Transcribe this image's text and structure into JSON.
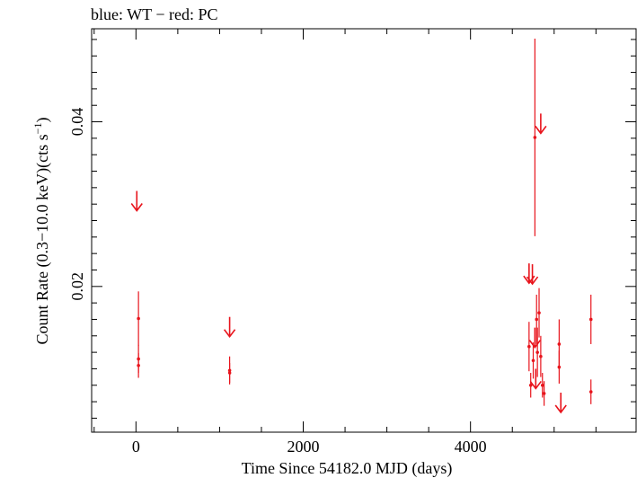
{
  "chart_data": {
    "type": "scatter",
    "title": "blue: WT − red: PC",
    "xlabel": "Time Since 54182.0 MJD (days)",
    "ylabel": "Count Rate (0.3−10.0 keV)(cts s",
    "ylabel_sup": "−1",
    "ylabel_end": ")",
    "xlim": [
      -530,
      5980
    ],
    "ylim": [
      0.0023,
      0.0513
    ],
    "x_ticks": [
      0,
      2000,
      4000
    ],
    "y_ticks": [
      0.02,
      0.04
    ],
    "y_minor_step": 0.002,
    "x_minor_step": 500,
    "grid": false,
    "colors": {
      "PC": "#e8141c"
    },
    "series": [
      {
        "name": "PC",
        "points": [
          {
            "x": 30,
            "y": 0.0161,
            "yerr": 0.0033
          },
          {
            "x": 30,
            "y": 0.0112,
            "yerr": 0.0017
          },
          {
            "x": 30,
            "y": 0.0104,
            "yerr": 0.0015
          },
          {
            "x": 1120,
            "y": 0.0098,
            "yerr": 0.0017
          },
          {
            "x": 1120,
            "y": 0.0095,
            "yerr": 0.0012
          },
          {
            "x": 4700,
            "y": 0.0127,
            "yerr": 0.003
          },
          {
            "x": 4720,
            "y": 0.008,
            "yerr": 0.0015
          },
          {
            "x": 4750,
            "y": 0.011,
            "yerr": 0.0022
          },
          {
            "x": 4770,
            "y": 0.0381,
            "yerr": 0.012
          },
          {
            "x": 4790,
            "y": 0.016,
            "yerr": 0.003
          },
          {
            "x": 4800,
            "y": 0.012,
            "yerr": 0.003
          },
          {
            "x": 4820,
            "y": 0.0168,
            "yerr": 0.003
          },
          {
            "x": 4840,
            "y": 0.0115,
            "yerr": 0.0025
          },
          {
            "x": 4860,
            "y": 0.008,
            "yerr": 0.0015
          },
          {
            "x": 4880,
            "y": 0.007,
            "yerr": 0.0015
          },
          {
            "x": 5060,
            "y": 0.013,
            "yerr": 0.003
          },
          {
            "x": 5060,
            "y": 0.0102,
            "yerr": 0.002
          },
          {
            "x": 5440,
            "y": 0.016,
            "yerr": 0.003
          },
          {
            "x": 5440,
            "y": 0.0072,
            "yerr": 0.0015
          }
        ],
        "upper_limits": [
          {
            "x": 10,
            "y": 0.0316
          },
          {
            "x": 1120,
            "y": 0.0163
          },
          {
            "x": 4700,
            "y": 0.0228
          },
          {
            "x": 4740,
            "y": 0.0227
          },
          {
            "x": 4770,
            "y": 0.015
          },
          {
            "x": 4780,
            "y": 0.01
          },
          {
            "x": 4840,
            "y": 0.041
          },
          {
            "x": 5080,
            "y": 0.0071
          }
        ]
      }
    ]
  }
}
